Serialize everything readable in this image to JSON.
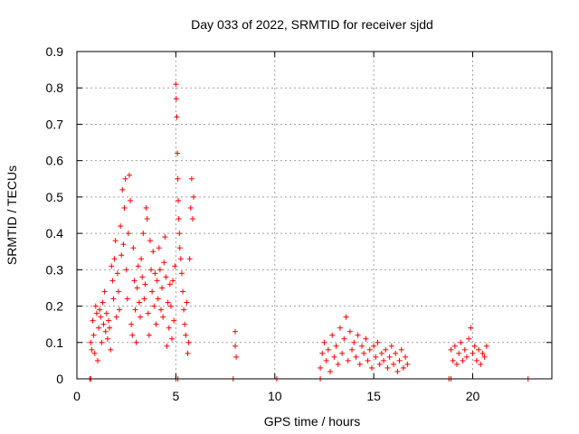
{
  "chart_data": {
    "type": "scatter",
    "title": "Day 033 of 2022, SRMTID for receiver sjdd",
    "xlabel": "GPS time / hours",
    "ylabel": "SRMTID / TECUs",
    "xlim": [
      0,
      24
    ],
    "ylim": [
      0,
      0.9
    ],
    "xticks": [
      0,
      5,
      10,
      15,
      20
    ],
    "yticks": [
      0,
      0.1,
      0.2,
      0.3,
      0.4,
      0.5,
      0.6,
      0.7,
      0.8,
      0.9
    ],
    "xtick_labels": [
      "0",
      "5",
      "10",
      "15",
      "20"
    ],
    "ytick_labels": [
      "0",
      "0.1",
      "0.2",
      "0.3",
      "0.4",
      "0.5",
      "0.6",
      "0.7",
      "0.8",
      "0.9"
    ],
    "grid": true,
    "marker": "+",
    "series_color": "#ff0000",
    "series": [
      {
        "name": "SRMTID",
        "points": [
          [
            0.7,
            0.1
          ],
          [
            0.75,
            0.08
          ],
          [
            0.8,
            0.16
          ],
          [
            0.85,
            0.12
          ],
          [
            0.9,
            0.07
          ],
          [
            0.95,
            0.2
          ],
          [
            1.0,
            0.18
          ],
          [
            1.05,
            0.05
          ],
          [
            1.1,
            0.14
          ],
          [
            1.15,
            0.19
          ],
          [
            1.2,
            0.17
          ],
          [
            1.25,
            0.1
          ],
          [
            1.3,
            0.21
          ],
          [
            1.35,
            0.15
          ],
          [
            1.4,
            0.24
          ],
          [
            1.45,
            0.13
          ],
          [
            1.5,
            0.18
          ],
          [
            1.55,
            0.11
          ],
          [
            1.6,
            0.16
          ],
          [
            1.65,
            0.14
          ],
          [
            1.7,
            0.08
          ],
          [
            1.75,
            0.31
          ],
          [
            1.8,
            0.27
          ],
          [
            1.85,
            0.22
          ],
          [
            1.9,
            0.33
          ],
          [
            1.95,
            0.38
          ],
          [
            2.0,
            0.17
          ],
          [
            2.05,
            0.29
          ],
          [
            2.1,
            0.24
          ],
          [
            2.15,
            0.19
          ],
          [
            2.2,
            0.42
          ],
          [
            2.25,
            0.34
          ],
          [
            2.3,
            0.52
          ],
          [
            2.35,
            0.37
          ],
          [
            2.4,
            0.47
          ],
          [
            2.45,
            0.55
          ],
          [
            2.5,
            0.3
          ],
          [
            2.55,
            0.22
          ],
          [
            2.6,
            0.4
          ],
          [
            2.65,
            0.56
          ],
          [
            2.7,
            0.49
          ],
          [
            2.75,
            0.15
          ],
          [
            2.8,
            0.12
          ],
          [
            2.85,
            0.36
          ],
          [
            2.9,
            0.27
          ],
          [
            2.95,
            0.19
          ],
          [
            3.0,
            0.1
          ],
          [
            3.05,
            0.25
          ],
          [
            3.1,
            0.31
          ],
          [
            3.15,
            0.21
          ],
          [
            3.2,
            0.17
          ],
          [
            3.25,
            0.33
          ],
          [
            3.3,
            0.28
          ],
          [
            3.35,
            0.4
          ],
          [
            3.4,
            0.22
          ],
          [
            3.45,
            0.26
          ],
          [
            3.5,
            0.47
          ],
          [
            3.55,
            0.44
          ],
          [
            3.6,
            0.18
          ],
          [
            3.65,
            0.12
          ],
          [
            3.7,
            0.38
          ],
          [
            3.75,
            0.3
          ],
          [
            3.8,
            0.24
          ],
          [
            3.85,
            0.35
          ],
          [
            3.9,
            0.2
          ],
          [
            3.95,
            0.29
          ],
          [
            4.0,
            0.15
          ],
          [
            4.05,
            0.27
          ],
          [
            4.1,
            0.22
          ],
          [
            4.15,
            0.36
          ],
          [
            4.2,
            0.3
          ],
          [
            4.25,
            0.19
          ],
          [
            4.3,
            0.25
          ],
          [
            4.35,
            0.17
          ],
          [
            4.4,
            0.32
          ],
          [
            4.45,
            0.39
          ],
          [
            4.5,
            0.28
          ],
          [
            4.55,
            0.09
          ],
          [
            4.6,
            0.21
          ],
          [
            4.65,
            0.14
          ],
          [
            4.7,
            0.26
          ],
          [
            4.75,
            0.2
          ],
          [
            4.8,
            0.11
          ],
          [
            4.85,
            0.27
          ],
          [
            4.9,
            0.16
          ],
          [
            4.95,
            0.31
          ],
          [
            5.0,
            0.81
          ],
          [
            5.02,
            0.77
          ],
          [
            5.05,
            0.72
          ],
          [
            5.08,
            0.62
          ],
          [
            5.1,
            0.55
          ],
          [
            5.12,
            0.49
          ],
          [
            5.15,
            0.44
          ],
          [
            5.18,
            0.4
          ],
          [
            5.2,
            0.36
          ],
          [
            5.25,
            0.33
          ],
          [
            5.3,
            0.29
          ],
          [
            5.35,
            0.24
          ],
          [
            5.4,
            0.19
          ],
          [
            5.45,
            0.15
          ],
          [
            5.5,
            0.12
          ],
          [
            5.55,
            0.21
          ],
          [
            5.6,
            0.07
          ],
          [
            5.65,
            0.1
          ],
          [
            5.7,
            0.33
          ],
          [
            5.75,
            0.47
          ],
          [
            5.8,
            0.55
          ],
          [
            5.85,
            0.44
          ],
          [
            5.9,
            0.5
          ],
          [
            8.0,
            0.13
          ],
          [
            8.0,
            0.09
          ],
          [
            8.05,
            0.06
          ],
          [
            12.3,
            0.03
          ],
          [
            12.4,
            0.07
          ],
          [
            12.5,
            0.1
          ],
          [
            12.6,
            0.05
          ],
          [
            12.7,
            0.08
          ],
          [
            12.8,
            0.02
          ],
          [
            12.9,
            0.12
          ],
          [
            13.0,
            0.06
          ],
          [
            13.1,
            0.09
          ],
          [
            13.2,
            0.04
          ],
          [
            13.3,
            0.14
          ],
          [
            13.4,
            0.07
          ],
          [
            13.5,
            0.11
          ],
          [
            13.6,
            0.17
          ],
          [
            13.7,
            0.05
          ],
          [
            13.8,
            0.13
          ],
          [
            13.9,
            0.08
          ],
          [
            14.0,
            0.1
          ],
          [
            14.1,
            0.06
          ],
          [
            14.2,
            0.12
          ],
          [
            14.3,
            0.04
          ],
          [
            14.4,
            0.09
          ],
          [
            14.5,
            0.07
          ],
          [
            14.6,
            0.11
          ],
          [
            14.7,
            0.05
          ],
          [
            14.8,
            0.08
          ],
          [
            14.9,
            0.03
          ],
          [
            15.0,
            0.09
          ],
          [
            15.1,
            0.06
          ],
          [
            15.2,
            0.1
          ],
          [
            15.3,
            0.04
          ],
          [
            15.4,
            0.07
          ],
          [
            15.5,
            0.05
          ],
          [
            15.6,
            0.08
          ],
          [
            15.7,
            0.03
          ],
          [
            15.8,
            0.06
          ],
          [
            15.9,
            0.09
          ],
          [
            16.0,
            0.04
          ],
          [
            16.1,
            0.07
          ],
          [
            16.2,
            0.02
          ],
          [
            16.3,
            0.05
          ],
          [
            16.4,
            0.08
          ],
          [
            16.5,
            0.03
          ],
          [
            16.6,
            0.06
          ],
          [
            16.7,
            0.04
          ],
          [
            18.9,
            0.08
          ],
          [
            19.0,
            0.05
          ],
          [
            19.1,
            0.09
          ],
          [
            19.2,
            0.04
          ],
          [
            19.3,
            0.07
          ],
          [
            19.4,
            0.1
          ],
          [
            19.5,
            0.05
          ],
          [
            19.6,
            0.08
          ],
          [
            19.7,
            0.06
          ],
          [
            19.8,
            0.11
          ],
          [
            19.9,
            0.14
          ],
          [
            20.0,
            0.07
          ],
          [
            20.1,
            0.09
          ],
          [
            20.2,
            0.05
          ],
          [
            20.3,
            0.08
          ],
          [
            20.4,
            0.04
          ],
          [
            20.5,
            0.07
          ],
          [
            20.6,
            0.06
          ],
          [
            20.7,
            0.09
          ],
          [
            0.65,
            0.0
          ],
          [
            0.7,
            0.0
          ],
          [
            5.0,
            0.0
          ],
          [
            5.1,
            0.0
          ],
          [
            7.9,
            0.0
          ],
          [
            10.1,
            0.0
          ],
          [
            12.3,
            0.0
          ],
          [
            18.8,
            0.0
          ],
          [
            18.9,
            0.0
          ],
          [
            22.8,
            0.0
          ]
        ]
      }
    ]
  }
}
